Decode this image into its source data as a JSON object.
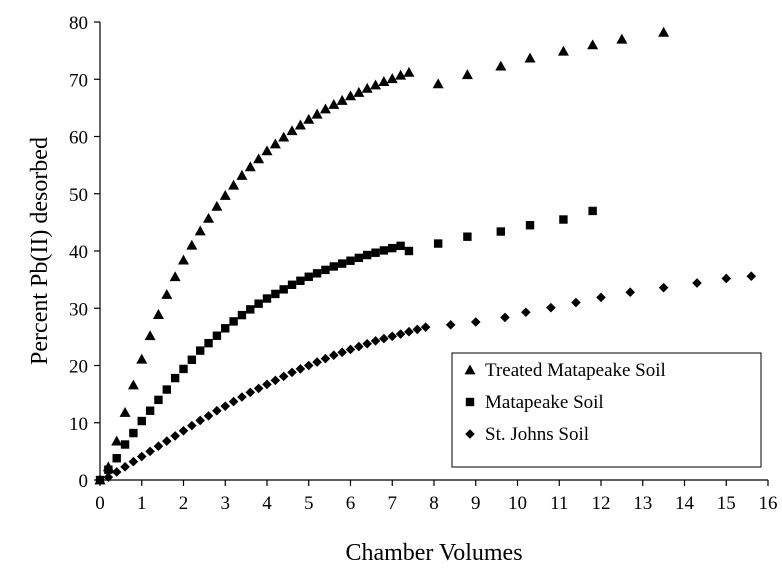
{
  "chart_data": {
    "type": "scatter",
    "xlabel": "Chamber Volumes",
    "ylabel": "Percent Pb(II) desorbed",
    "xlim": [
      0,
      16
    ],
    "ylim": [
      0,
      80
    ],
    "xticks": [
      "0",
      "1",
      "2",
      "3",
      "4",
      "5",
      "6",
      "7",
      "8",
      "9",
      "10",
      "11",
      "12",
      "13",
      "14",
      "15",
      "16"
    ],
    "yticks": [
      "0",
      "10",
      "20",
      "30",
      "40",
      "50",
      "60",
      "70",
      "80"
    ],
    "grid": false,
    "legend_position": "bottom-right",
    "series": [
      {
        "name": "Treated Matapeake Soil",
        "marker": "triangle",
        "color": "#000000",
        "x": [
          0.0,
          0.2,
          0.4,
          0.6,
          0.8,
          1.0,
          1.2,
          1.4,
          1.6,
          1.8,
          2.0,
          2.2,
          2.4,
          2.6,
          2.8,
          3.0,
          3.2,
          3.4,
          3.6,
          3.8,
          4.0,
          4.2,
          4.4,
          4.6,
          4.8,
          5.0,
          5.2,
          5.4,
          5.6,
          5.8,
          6.0,
          6.2,
          6.4,
          6.6,
          6.8,
          7.0,
          7.2,
          7.4,
          8.1,
          8.8,
          9.6,
          10.3,
          11.1,
          11.8,
          12.5,
          13.5
        ],
        "y": [
          0.0,
          2.3,
          6.8,
          11.8,
          16.6,
          21.1,
          25.2,
          28.9,
          32.4,
          35.5,
          38.4,
          41.0,
          43.5,
          45.7,
          47.8,
          49.7,
          51.5,
          53.2,
          54.7,
          56.1,
          57.5,
          58.7,
          59.9,
          61.0,
          62.0,
          63.0,
          63.9,
          64.8,
          65.6,
          66.3,
          67.1,
          67.7,
          68.4,
          69.0,
          69.6,
          70.1,
          70.7,
          71.2,
          69.2,
          70.8,
          72.3,
          73.7,
          74.9,
          76.0,
          77.0,
          78.2
        ]
      },
      {
        "name": "Matapeake Soil",
        "marker": "square",
        "color": "#000000",
        "x": [
          0.0,
          0.2,
          0.4,
          0.6,
          0.8,
          1.0,
          1.2,
          1.4,
          1.6,
          1.8,
          2.0,
          2.2,
          2.4,
          2.6,
          2.8,
          3.0,
          3.2,
          3.4,
          3.6,
          3.8,
          4.0,
          4.2,
          4.4,
          4.6,
          4.8,
          5.0,
          5.2,
          5.4,
          5.6,
          5.8,
          6.0,
          6.2,
          6.4,
          6.6,
          6.8,
          7.0,
          7.2,
          7.4,
          8.1,
          8.8,
          9.6,
          10.3,
          11.1,
          11.8
        ],
        "y": [
          0.0,
          1.8,
          3.8,
          6.2,
          8.2,
          10.3,
          12.1,
          14.0,
          15.8,
          17.8,
          19.4,
          21.0,
          22.6,
          23.9,
          25.2,
          26.5,
          27.7,
          28.8,
          29.8,
          30.8,
          31.7,
          32.5,
          33.3,
          34.1,
          34.8,
          35.5,
          36.1,
          36.7,
          37.3,
          37.8,
          38.3,
          38.8,
          39.3,
          39.7,
          40.1,
          40.5,
          40.9,
          40.0,
          41.3,
          42.5,
          43.4,
          44.5,
          45.5,
          47.0
        ]
      },
      {
        "name": "St. Johns Soil",
        "marker": "diamond",
        "color": "#000000",
        "x": [
          0.0,
          0.2,
          0.4,
          0.6,
          0.8,
          1.0,
          1.2,
          1.4,
          1.6,
          1.8,
          2.0,
          2.2,
          2.4,
          2.6,
          2.8,
          3.0,
          3.2,
          3.4,
          3.6,
          3.8,
          4.0,
          4.2,
          4.4,
          4.6,
          4.8,
          5.0,
          5.2,
          5.4,
          5.6,
          5.8,
          6.0,
          6.2,
          6.4,
          6.6,
          6.8,
          7.0,
          7.2,
          7.4,
          7.6,
          7.8,
          8.4,
          9.0,
          9.7,
          10.2,
          10.8,
          11.4,
          12.0,
          12.7,
          13.5,
          14.3,
          15.0,
          15.6
        ],
        "y": [
          0.0,
          0.5,
          1.4,
          2.3,
          3.2,
          4.1,
          5.0,
          5.9,
          6.8,
          7.7,
          8.6,
          9.5,
          10.4,
          11.2,
          12.1,
          12.9,
          13.7,
          14.5,
          15.3,
          16.0,
          16.7,
          17.4,
          18.1,
          18.8,
          19.4,
          20.0,
          20.6,
          21.2,
          21.8,
          22.3,
          22.8,
          23.3,
          23.8,
          24.3,
          24.7,
          25.1,
          25.5,
          25.9,
          26.3,
          26.7,
          27.1,
          27.6,
          28.4,
          29.3,
          30.1,
          31.0,
          31.9,
          32.8,
          33.6,
          34.4,
          35.2,
          35.6
        ]
      }
    ]
  }
}
